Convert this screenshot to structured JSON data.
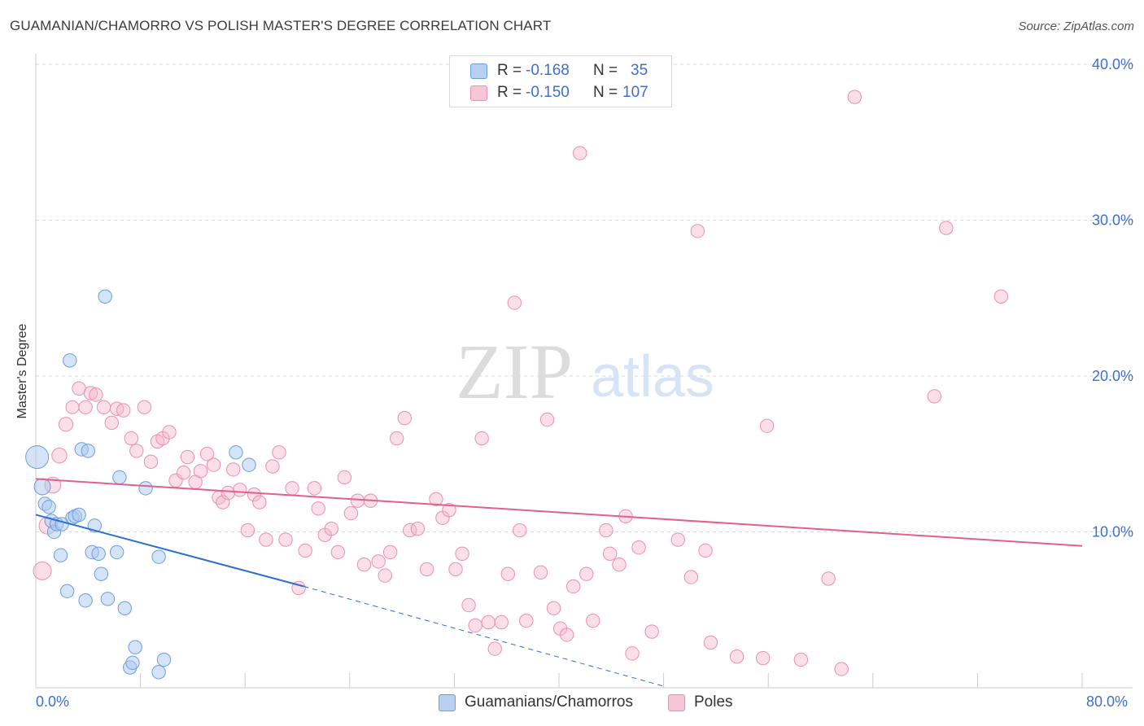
{
  "title": "GUAMANIAN/CHAMORRO VS POLISH MASTER'S DEGREE CORRELATION CHART",
  "source": "Source: ZipAtlas.com",
  "watermark": {
    "zip": "ZIP",
    "atlas": "atlas"
  },
  "legend": {
    "rows": [
      {
        "r_label": "R =",
        "r_value": "-0.168",
        "n_label": "N =",
        "n_value": "35"
      },
      {
        "r_label": "R =",
        "r_value": "-0.150",
        "n_label": "N =",
        "n_value": "107"
      }
    ]
  },
  "bottom_legend": [
    {
      "label": "Guamanians/Chamorros"
    },
    {
      "label": "Poles"
    }
  ],
  "colors": {
    "blue_fill": "#a9c7ee",
    "blue_stroke": "#6e9cde",
    "blue_line": "#2a6fd1",
    "pink_fill": "#f5b8cb",
    "pink_stroke": "#ea8fad",
    "pink_line": "#e0608e",
    "tick_label": "#3f6fcc",
    "grid": "#d9d9d9"
  },
  "chart_data": {
    "type": "scatter",
    "title": "GUAMANIAN/CHAMORRO VS POLISH MASTER'S DEGREE CORRELATION CHART",
    "xlabel": "",
    "ylabel": "Master's Degree",
    "xlim": [
      0,
      80
    ],
    "ylim": [
      0,
      40
    ],
    "x_tick_labels": [
      "0.0%",
      "80.0%"
    ],
    "y_ticks": [
      10,
      20,
      30,
      40
    ],
    "y_tick_labels": [
      "10.0%",
      "20.0%",
      "30.0%",
      "40.0%"
    ],
    "grid": true,
    "series": [
      {
        "name": "Guamanians/Chamorros",
        "color": "blue",
        "points": [
          [
            0.1,
            14.8
          ],
          [
            0.5,
            12.9
          ],
          [
            0.7,
            11.8
          ],
          [
            1.0,
            11.6
          ],
          [
            1.2,
            10.7
          ],
          [
            1.4,
            10.0
          ],
          [
            1.6,
            10.5
          ],
          [
            2.0,
            10.5
          ],
          [
            2.4,
            6.2
          ],
          [
            2.6,
            21.0
          ],
          [
            2.8,
            10.9
          ],
          [
            3.0,
            11.0
          ],
          [
            3.3,
            11.1
          ],
          [
            3.5,
            15.3
          ],
          [
            3.8,
            5.6
          ],
          [
            4.0,
            15.2
          ],
          [
            4.3,
            8.7
          ],
          [
            4.5,
            10.4
          ],
          [
            4.8,
            8.6
          ],
          [
            5.0,
            7.3
          ],
          [
            5.3,
            25.1
          ],
          [
            5.5,
            5.7
          ],
          [
            6.2,
            8.7
          ],
          [
            6.4,
            13.5
          ],
          [
            6.8,
            5.1
          ],
          [
            7.2,
            1.3
          ],
          [
            7.6,
            2.6
          ],
          [
            7.4,
            1.6
          ],
          [
            8.4,
            12.8
          ],
          [
            9.4,
            8.4
          ],
          [
            9.4,
            1.0
          ],
          [
            9.8,
            1.8
          ],
          [
            15.3,
            15.1
          ],
          [
            16.3,
            14.3
          ],
          [
            1.9,
            8.5
          ]
        ],
        "trend": {
          "x_start": 0,
          "y_start": 11.1,
          "x_solid_end": 20.5,
          "y_solid_end": 6.5,
          "x_dash_end": 48,
          "y_dash_end": 0.1
        }
      },
      {
        "name": "Poles",
        "color": "pink",
        "points": [
          [
            0.5,
            7.5
          ],
          [
            0.9,
            10.4
          ],
          [
            1.3,
            13.0
          ],
          [
            1.8,
            14.9
          ],
          [
            2.3,
            16.9
          ],
          [
            2.8,
            18.0
          ],
          [
            3.3,
            19.2
          ],
          [
            3.8,
            18.0
          ],
          [
            4.2,
            18.9
          ],
          [
            4.6,
            18.8
          ],
          [
            5.2,
            18.0
          ],
          [
            5.8,
            17.0
          ],
          [
            6.2,
            17.9
          ],
          [
            6.7,
            17.8
          ],
          [
            7.3,
            16.0
          ],
          [
            7.7,
            15.2
          ],
          [
            8.3,
            18.0
          ],
          [
            8.8,
            14.5
          ],
          [
            9.3,
            15.8
          ],
          [
            9.7,
            16.0
          ],
          [
            10.2,
            16.4
          ],
          [
            10.7,
            13.3
          ],
          [
            11.3,
            13.8
          ],
          [
            11.6,
            14.8
          ],
          [
            12.2,
            13.2
          ],
          [
            12.6,
            13.9
          ],
          [
            13.1,
            15.0
          ],
          [
            13.6,
            14.3
          ],
          [
            14.0,
            12.2
          ],
          [
            14.3,
            11.9
          ],
          [
            14.7,
            12.5
          ],
          [
            15.1,
            14.0
          ],
          [
            15.6,
            12.7
          ],
          [
            16.2,
            10.1
          ],
          [
            16.7,
            12.4
          ],
          [
            17.1,
            11.9
          ],
          [
            17.6,
            9.5
          ],
          [
            18.1,
            14.2
          ],
          [
            18.6,
            15.1
          ],
          [
            19.1,
            9.5
          ],
          [
            19.6,
            12.8
          ],
          [
            20.1,
            6.4
          ],
          [
            20.6,
            8.8
          ],
          [
            21.3,
            12.8
          ],
          [
            21.6,
            11.5
          ],
          [
            22.1,
            9.8
          ],
          [
            22.6,
            10.2
          ],
          [
            23.1,
            8.7
          ],
          [
            23.6,
            13.5
          ],
          [
            24.1,
            11.2
          ],
          [
            24.6,
            12.0
          ],
          [
            25.1,
            7.9
          ],
          [
            25.6,
            12.0
          ],
          [
            26.2,
            8.1
          ],
          [
            26.7,
            7.2
          ],
          [
            27.1,
            8.7
          ],
          [
            27.6,
            16.0
          ],
          [
            28.2,
            17.3
          ],
          [
            28.6,
            10.1
          ],
          [
            29.2,
            10.2
          ],
          [
            29.9,
            7.6
          ],
          [
            30.6,
            12.1
          ],
          [
            31.1,
            10.9
          ],
          [
            31.6,
            11.4
          ],
          [
            32.1,
            7.6
          ],
          [
            32.6,
            8.6
          ],
          [
            33.1,
            5.3
          ],
          [
            33.6,
            4.0
          ],
          [
            34.1,
            16.0
          ],
          [
            34.6,
            4.2
          ],
          [
            35.1,
            2.5
          ],
          [
            35.6,
            4.2
          ],
          [
            36.1,
            7.3
          ],
          [
            36.6,
            24.7
          ],
          [
            37.0,
            10.1
          ],
          [
            37.5,
            4.3
          ],
          [
            38.6,
            7.4
          ],
          [
            39.1,
            17.2
          ],
          [
            39.6,
            5.1
          ],
          [
            40.1,
            3.8
          ],
          [
            40.6,
            3.4
          ],
          [
            41.1,
            6.5
          ],
          [
            41.6,
            34.3
          ],
          [
            42.1,
            7.3
          ],
          [
            42.6,
            4.3
          ],
          [
            43.6,
            10.1
          ],
          [
            43.9,
            8.6
          ],
          [
            44.6,
            7.9
          ],
          [
            45.1,
            11.0
          ],
          [
            45.6,
            2.2
          ],
          [
            46.1,
            9.0
          ],
          [
            47.1,
            3.6
          ],
          [
            49.1,
            9.5
          ],
          [
            50.1,
            7.1
          ],
          [
            50.6,
            29.3
          ],
          [
            51.2,
            8.8
          ],
          [
            51.6,
            2.9
          ],
          [
            53.6,
            2.0
          ],
          [
            55.6,
            1.9
          ],
          [
            55.9,
            16.8
          ],
          [
            58.5,
            1.8
          ],
          [
            60.6,
            7.0
          ],
          [
            61.6,
            1.2
          ],
          [
            62.6,
            37.9
          ],
          [
            68.7,
            18.7
          ],
          [
            69.6,
            29.5
          ],
          [
            73.8,
            25.1
          ]
        ],
        "trend": {
          "x_start": 0,
          "y_start": 13.4,
          "x_end": 80,
          "y_end": 9.1
        }
      }
    ]
  }
}
